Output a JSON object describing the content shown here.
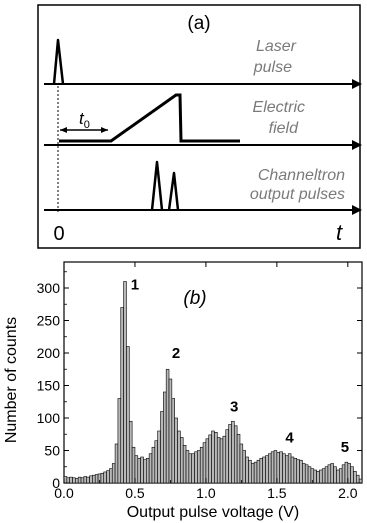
{
  "panel_a": {
    "label": "(a)",
    "rows": [
      {
        "label_line1": "Laser",
        "label_line2": "pulse"
      },
      {
        "label_line1": "Electric",
        "label_line2": "field"
      },
      {
        "label_line1": "Channeltron",
        "label_line2": "output pulses"
      }
    ],
    "t0_base": "t",
    "t0_sub": "0",
    "origin_label": "0",
    "time_label": "t"
  },
  "chart_data": {
    "type": "bar",
    "panel_label": "(b)",
    "xlabel": "Output pulse voltage (V)",
    "ylabel": "Number of counts",
    "xlim": [
      0.0,
      2.1
    ],
    "ylim": [
      0,
      340
    ],
    "x_ticks": [
      0.0,
      0.5,
      1.0,
      1.5,
      2.0
    ],
    "x_tick_labels": [
      "0.0",
      "0.5",
      "1.0",
      "1.5",
      "2.0"
    ],
    "y_ticks": [
      0,
      50,
      100,
      150,
      200,
      250,
      300
    ],
    "y_tick_labels": [
      "0",
      "50",
      "100",
      "150",
      "200",
      "250",
      "300"
    ],
    "bin_width": 0.02,
    "x": [
      0.01,
      0.03,
      0.05,
      0.07,
      0.09,
      0.11,
      0.13,
      0.15,
      0.17,
      0.19,
      0.21,
      0.23,
      0.25,
      0.27,
      0.29,
      0.31,
      0.33,
      0.35,
      0.37,
      0.39,
      0.41,
      0.43,
      0.45,
      0.47,
      0.49,
      0.51,
      0.53,
      0.55,
      0.57,
      0.59,
      0.61,
      0.63,
      0.65,
      0.67,
      0.69,
      0.71,
      0.73,
      0.75,
      0.77,
      0.79,
      0.81,
      0.83,
      0.85,
      0.87,
      0.89,
      0.91,
      0.93,
      0.95,
      0.97,
      0.99,
      1.01,
      1.03,
      1.05,
      1.07,
      1.09,
      1.11,
      1.13,
      1.15,
      1.17,
      1.19,
      1.21,
      1.23,
      1.25,
      1.27,
      1.29,
      1.31,
      1.33,
      1.35,
      1.37,
      1.39,
      1.41,
      1.43,
      1.45,
      1.47,
      1.49,
      1.51,
      1.53,
      1.55,
      1.57,
      1.59,
      1.61,
      1.63,
      1.65,
      1.67,
      1.69,
      1.71,
      1.73,
      1.75,
      1.77,
      1.79,
      1.81,
      1.83,
      1.85,
      1.87,
      1.89,
      1.91,
      1.93,
      1.95,
      1.97,
      1.99,
      2.01,
      2.03,
      2.05,
      2.07,
      2.09
    ],
    "values": [
      10,
      8,
      9,
      8,
      7,
      9,
      8,
      10,
      9,
      11,
      12,
      13,
      14,
      15,
      17,
      19,
      22,
      30,
      60,
      130,
      270,
      310,
      210,
      95,
      55,
      42,
      38,
      40,
      36,
      38,
      45,
      55,
      65,
      80,
      110,
      140,
      175,
      160,
      130,
      100,
      80,
      70,
      58,
      50,
      45,
      45,
      48,
      50,
      55,
      62,
      68,
      74,
      80,
      78,
      70,
      68,
      72,
      82,
      90,
      95,
      88,
      75,
      60,
      50,
      40,
      35,
      30,
      32,
      35,
      38,
      40,
      42,
      45,
      48,
      50,
      47,
      48,
      45,
      42,
      45,
      40,
      38,
      36,
      35,
      30,
      28,
      25,
      22,
      20,
      18,
      20,
      22,
      25,
      28,
      30,
      25,
      20,
      22,
      28,
      32,
      30,
      25,
      18,
      12,
      6
    ],
    "annotations": [
      {
        "text": "1",
        "x": 0.47,
        "y": 298
      },
      {
        "text": "2",
        "x": 0.76,
        "y": 192
      },
      {
        "text": "3",
        "x": 1.17,
        "y": 110
      },
      {
        "text": "4",
        "x": 1.56,
        "y": 62
      },
      {
        "text": "5",
        "x": 1.95,
        "y": 48
      }
    ]
  }
}
